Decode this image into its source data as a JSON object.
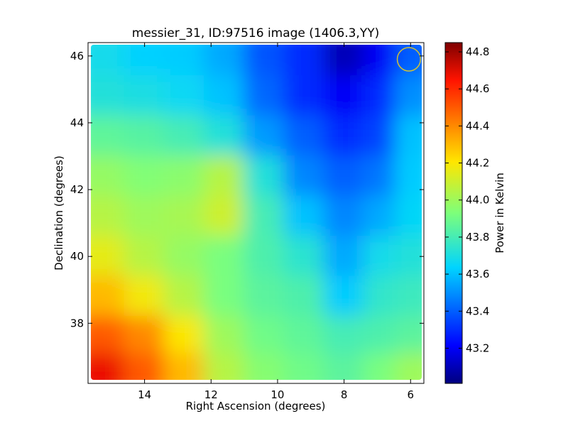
{
  "chart_data": {
    "type": "heatmap",
    "title": "messier_31, ID:97516 image (1406.3,YY)",
    "xlabel": "Right Ascension (degrees)",
    "ylabel": "Declination (degrees)",
    "xlim": [
      15.7,
      5.6
    ],
    "ylim": [
      36.2,
      46.4
    ],
    "x_reversed": true,
    "xticks": [
      14,
      12,
      10,
      8,
      6
    ],
    "yticks": [
      38,
      40,
      42,
      44,
      46
    ],
    "colorbar": {
      "label": "Power in Kelvin",
      "range": [
        43.01,
        44.85
      ],
      "ticks": [
        43.2,
        43.4,
        43.6,
        43.8,
        44.0,
        44.2,
        44.4,
        44.6,
        44.8
      ],
      "colormap": "jet"
    },
    "x_centers": [
      15.2,
      14.0,
      12.8,
      11.6,
      10.4,
      9.2,
      8.0,
      6.8,
      6.1
    ],
    "y_centers": [
      46.0,
      44.8,
      43.6,
      42.4,
      41.2,
      40.0,
      38.8,
      37.6,
      36.6
    ],
    "values": [
      [
        43.68,
        43.63,
        43.62,
        43.55,
        43.38,
        43.3,
        43.1,
        43.2,
        43.4
      ],
      [
        43.72,
        43.7,
        43.66,
        43.6,
        43.42,
        43.3,
        43.2,
        43.3,
        43.5
      ],
      [
        43.86,
        43.84,
        43.8,
        43.72,
        43.52,
        43.4,
        43.3,
        43.35,
        43.6
      ],
      [
        43.98,
        43.94,
        43.96,
        44.05,
        43.72,
        43.48,
        43.4,
        43.45,
        43.62
      ],
      [
        44.05,
        44.0,
        44.02,
        44.1,
        43.8,
        43.6,
        43.48,
        43.55,
        43.65
      ],
      [
        44.15,
        44.05,
        43.98,
        43.92,
        43.82,
        43.74,
        43.55,
        43.68,
        43.72
      ],
      [
        44.3,
        44.18,
        44.05,
        43.92,
        43.85,
        43.82,
        43.62,
        43.75,
        43.78
      ],
      [
        44.5,
        44.4,
        44.2,
        44.0,
        43.9,
        43.86,
        43.8,
        43.82,
        43.85
      ],
      [
        44.68,
        44.5,
        44.3,
        44.05,
        43.95,
        43.9,
        43.85,
        43.92,
        44.0
      ]
    ],
    "annotations": [
      {
        "type": "circle",
        "x": 6.05,
        "y": 45.9,
        "radius": 0.35,
        "color": "#d4c232"
      }
    ]
  }
}
